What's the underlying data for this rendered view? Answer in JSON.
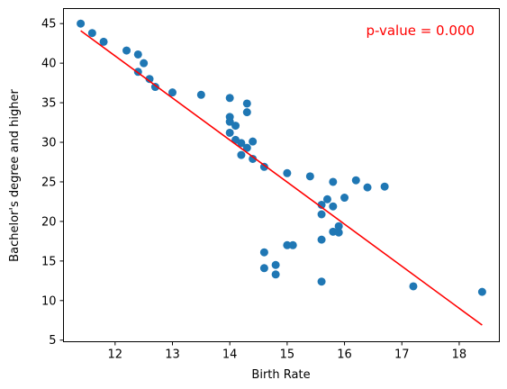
{
  "chart_data": {
    "type": "scatter",
    "title": "",
    "xlabel": "Birth Rate",
    "ylabel": "Bachelor's degree and higher",
    "xlim": [
      11.1,
      18.7
    ],
    "ylim": [
      4.8,
      46.9
    ],
    "xticks": [
      12,
      13,
      14,
      15,
      16,
      17,
      18
    ],
    "yticks": [
      5,
      10,
      15,
      20,
      25,
      30,
      35,
      40,
      45
    ],
    "grid": false,
    "annotation": {
      "text": "p-value = 0.000",
      "color": "#ff0000",
      "position": "top-right"
    },
    "series": [
      {
        "kind": "points",
        "color": "#1f77b4",
        "points": [
          [
            11.4,
            45.0
          ],
          [
            11.6,
            43.8
          ],
          [
            11.8,
            42.7
          ],
          [
            12.2,
            41.6
          ],
          [
            12.4,
            41.1
          ],
          [
            12.5,
            40.0
          ],
          [
            12.4,
            38.9
          ],
          [
            12.6,
            38.0
          ],
          [
            12.7,
            37.0
          ],
          [
            13.0,
            36.3
          ],
          [
            13.5,
            36.0
          ],
          [
            14.0,
            35.6
          ],
          [
            14.3,
            34.9
          ],
          [
            14.3,
            33.8
          ],
          [
            14.0,
            33.2
          ],
          [
            14.0,
            32.6
          ],
          [
            14.1,
            32.1
          ],
          [
            14.0,
            31.2
          ],
          [
            14.1,
            30.3
          ],
          [
            14.2,
            29.9
          ],
          [
            14.3,
            29.3
          ],
          [
            14.4,
            30.1
          ],
          [
            14.2,
            28.4
          ],
          [
            14.4,
            27.9
          ],
          [
            14.6,
            26.9
          ],
          [
            15.0,
            26.1
          ],
          [
            15.4,
            25.7
          ],
          [
            15.8,
            25.0
          ],
          [
            16.2,
            25.2
          ],
          [
            16.4,
            24.3
          ],
          [
            16.7,
            24.4
          ],
          [
            15.7,
            22.8
          ],
          [
            16.0,
            23.0
          ],
          [
            15.6,
            22.1
          ],
          [
            15.8,
            21.9
          ],
          [
            15.6,
            20.9
          ],
          [
            15.9,
            19.4
          ],
          [
            15.8,
            18.7
          ],
          [
            15.9,
            18.6
          ],
          [
            15.6,
            17.7
          ],
          [
            15.0,
            17.0
          ],
          [
            15.1,
            17.0
          ],
          [
            14.6,
            16.1
          ],
          [
            14.8,
            14.5
          ],
          [
            14.6,
            14.1
          ],
          [
            14.8,
            13.3
          ],
          [
            15.6,
            12.4
          ],
          [
            17.2,
            11.8
          ],
          [
            18.4,
            11.1
          ]
        ]
      },
      {
        "kind": "fit-line",
        "color": "#ff0000",
        "points": [
          [
            11.4,
            44.1
          ],
          [
            18.4,
            6.9
          ]
        ]
      }
    ]
  }
}
